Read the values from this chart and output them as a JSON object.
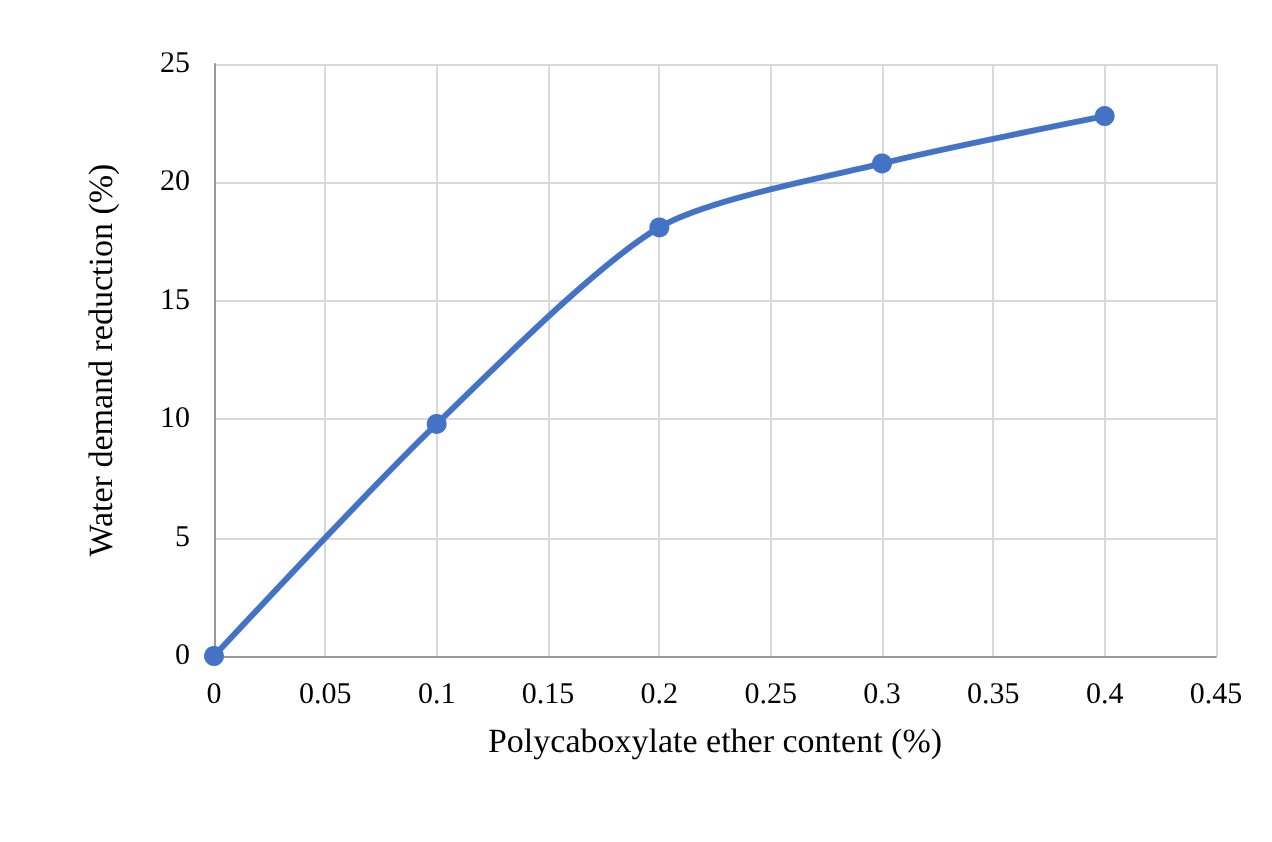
{
  "chart_data": {
    "type": "line",
    "xlabel": "Polycaboxylate ether content (%)",
    "ylabel": "Water demand reduction (%)",
    "x": [
      0,
      0.1,
      0.2,
      0.3,
      0.4
    ],
    "series": [
      {
        "color": "#4472c4",
        "values": [
          0,
          9.8,
          18.1,
          20.8,
          22.8
        ]
      }
    ],
    "xlim": [
      0,
      0.45
    ],
    "xticks": [
      0,
      0.05,
      0.1,
      0.15,
      0.2,
      0.25,
      0.3,
      0.35,
      0.4,
      0.45
    ],
    "ylim": [
      0,
      25
    ],
    "yticks": [
      0,
      5,
      10,
      15,
      20,
      25
    ],
    "grid": true,
    "marker": "circle",
    "line_style": "solid"
  }
}
